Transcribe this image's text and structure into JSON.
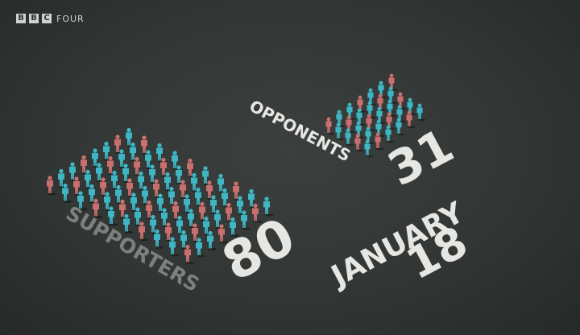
{
  "broadcaster": {
    "letters": [
      "B",
      "B",
      "C"
    ],
    "channel": "FOUR"
  },
  "supporters": {
    "label": "SUPPORTERS",
    "count": "80",
    "figure_count": 80
  },
  "opponents": {
    "label": "OPPONENTS",
    "count": "31",
    "figure_count": 31
  },
  "date": {
    "month": "JANUARY",
    "day": "18"
  },
  "colors": {
    "background": "#2f3331",
    "figure_teal": "#3fb6c4",
    "figure_red": "#c9706f",
    "label_gray": "#7d807d",
    "number_white": "#e6e6e2"
  }
}
